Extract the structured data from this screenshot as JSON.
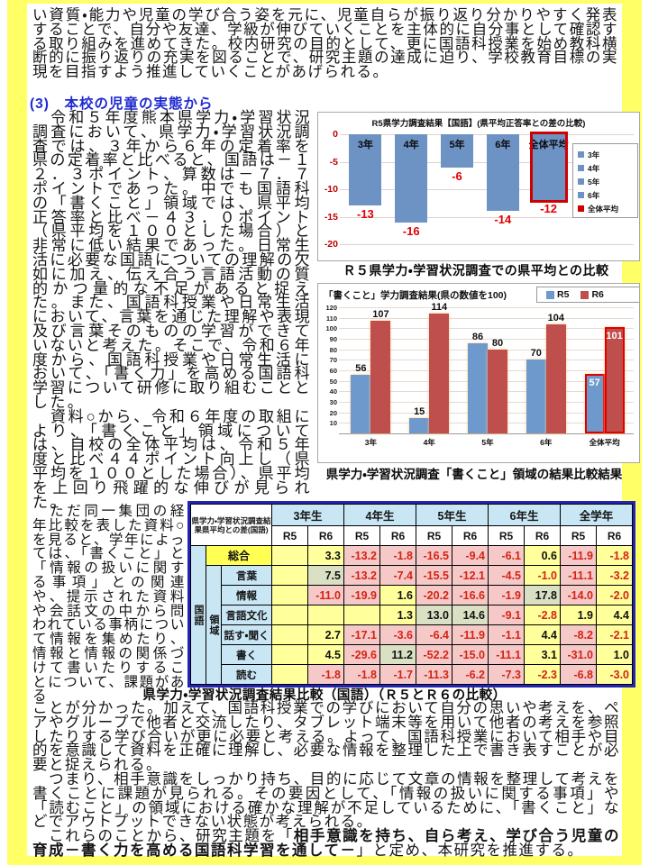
{
  "page": {
    "intro_paragraph": "い資質・能力や児童の学び合う姿を元に、児童自らが振り返り分かりやすく発表することで、自分や友達、学級が伸びていくことを主体的に自分事として確認する取り組みを進めてきた。校内研究の目的として、更に国語科授業を始め教科横断的に振り返りの充実を図ることで、研究主題の達成に迫り、学校教育目標の実現を目指すよう推進していくことがあげられる。",
    "section_heading": "(3)　本校の児童の実態から",
    "left_paragraph_1": "　令和５年度熊本県学力・学習状況調査において、県学力・学習状況調査では、３年から６年の定着率を県の定着率と比べると、国語は－１２．３ポイント、算数は－７．７ポイントであった。中でも国語科の「書くこと」領域では、県平均正答率と比べ－４３．０ポイント（県平均を１００とした場合）と非常に低い結果であった。日常生活に必要な国語についての理解の欠如に加え、伝え合う言語活動の質的かつ量的な不足があると捉えた。また、国語科授業や日常生活において、言葉を通じた理解や表現及び言葉そのものの学習ができていないと考えた。そこで、令和６年度から、国語科授業や日常生活において、「書く力」を高める国語科学習について研修に取り組むこととした。",
    "left_paragraph_2": "　資料○から、令和６年度の取組により、「書くこと」領域については、自校の全体平均は、令和５年度と比べ４４ポイント向上し（県平均を１００とした場合）、県平均を上回り飛躍的な伸びが見られた。",
    "narrow_paragraph": "　ただ同一集団の経年比較を表した資料○を見ると、学年によっては、「書くこと」と「情報の扱いに関する事項」との関連や、提示された資料や会話文の中から問われている事柄について情報を集めたり、情報と情報の関係づけて書いたりすることについて、課題がある",
    "bottom_paragraph_1": "ことが分かった。加えて、国語科授業での学びにおいて自分の思いや考えを、ペアやグループで他者と交流したり、タブレット端末等を用いて他者の考えを参照したりする学び合いが更に必要と考える。よって、国語科授業において相手や目的を意識して資料を正確に理解し、必要な情報を整理した上で書き表すことが必要と捉えられる。",
    "bottom_paragraph_2": "　つまり、相手意識をしっかり持ち、目的に応じて文章の情報を整理して考えを書くことに課題が見られる。その要因として、「情報の扱いに関する事項」や「読むこと」の領域における確かな理解が不足しているために、「書くこと」などでアウトプットできない状態が考えられる。",
    "bottom_paragraph_3_pre": "　これらのことから、研究主題を「",
    "research_theme": "相手意識を持ち、自ら考え、学び合う児童の育成－書く力を高める国語科学習を通して－",
    "bottom_paragraph_3_post": "」と定め、本研究を推進する。"
  },
  "captions": {
    "chart1": "Ｒ５県学力・学習状況調査での県平均との比較",
    "chart2": "県学力・学習状況調査「書くこと」領域の結果比較結果",
    "table": "県学力・学習状況調査結果比較（国語）（Ｒ５とＲ６の比較）"
  },
  "chart_data": [
    {
      "type": "bar",
      "title": "R5県学力調査結果【国語】(県平均正答率との差の比較)",
      "categories": [
        "3年",
        "4年",
        "5年",
        "6年",
        "全体平均"
      ],
      "values": [
        -13,
        -16,
        -6,
        -14,
        -12
      ],
      "ylim": [
        -20,
        0
      ],
      "yticks": [
        0,
        -5,
        -10,
        -15,
        -20
      ],
      "bar_color": "#6d92c4",
      "value_label_color": "#e00000",
      "highlight_last": true,
      "highlight_color": "#d00000",
      "legend": [
        {
          "label": "3年",
          "color": "#6d92c4"
        },
        {
          "label": "4年",
          "color": "#6d92c4"
        },
        {
          "label": "5年",
          "color": "#6d92c4"
        },
        {
          "label": "6年",
          "color": "#6d92c4"
        },
        {
          "label": "全体平均",
          "color": "#d00000"
        }
      ],
      "legend_position": "right"
    },
    {
      "type": "bar",
      "title": "「書くこと」学力調査結果(県の数値を100)",
      "categories": [
        "3年",
        "4年",
        "5年",
        "6年",
        "全体平均"
      ],
      "series": [
        {
          "name": "R5",
          "color": "#6d99cc",
          "values": [
            56,
            15,
            86,
            70,
            57
          ]
        },
        {
          "name": "R6",
          "color": "#bf4f4c",
          "values": [
            107,
            114,
            80,
            104,
            101
          ]
        }
      ],
      "ylim": [
        0,
        120
      ],
      "ytick_step": 10,
      "highlight_last_group": true,
      "highlight_color": "#e00000",
      "legend_position": "top-right"
    }
  ],
  "table": {
    "corner_label": "県学力・学習状況調査結果県平均との差(国語)",
    "group_headers": [
      "3年生",
      "4年生",
      "5年生",
      "6年生",
      "全学年"
    ],
    "sub_headers": [
      "R5",
      "R6"
    ],
    "axis_label": "国語",
    "area_label": "領域",
    "rows": [
      {
        "label": "総合",
        "sogo": true,
        "cells": [
          [
            "",
            "y"
          ],
          [
            "3.3",
            "y"
          ],
          [
            "-13.2",
            "p"
          ],
          [
            "-1.8",
            "p"
          ],
          [
            "-16.5",
            "p"
          ],
          [
            "-9.4",
            "p"
          ],
          [
            "-6.1",
            "p"
          ],
          [
            "0.6",
            "y"
          ],
          [
            "-11.9",
            "p"
          ],
          [
            "-1.8",
            "y"
          ]
        ]
      },
      {
        "label": "言葉",
        "cells": [
          [
            "",
            "y"
          ],
          [
            "7.5",
            "g"
          ],
          [
            "-13.2",
            "p"
          ],
          [
            "-7.4",
            "p"
          ],
          [
            "-15.5",
            "p"
          ],
          [
            "-12.1",
            "p"
          ],
          [
            "-4.5",
            "p"
          ],
          [
            "-1.0",
            "y"
          ],
          [
            "-11.1",
            "p"
          ],
          [
            "-3.2",
            "y"
          ]
        ]
      },
      {
        "label": "情報",
        "cells": [
          [
            "",
            "y"
          ],
          [
            "-11.0",
            "p"
          ],
          [
            "-19.9",
            "p"
          ],
          [
            "1.6",
            "y"
          ],
          [
            "-20.2",
            "p"
          ],
          [
            "-16.6",
            "p"
          ],
          [
            "-1.9",
            "p"
          ],
          [
            "17.8",
            "g"
          ],
          [
            "-14.0",
            "p"
          ],
          [
            "-2.0",
            "y"
          ]
        ]
      },
      {
        "label": "言語文化",
        "cells": [
          [
            "",
            "y"
          ],
          [
            "",
            "y"
          ],
          [
            "",
            "y"
          ],
          [
            "1.3",
            "y"
          ],
          [
            "13.0",
            "g"
          ],
          [
            "14.6",
            "g"
          ],
          [
            "-9.1",
            "p"
          ],
          [
            "-2.8",
            "y"
          ],
          [
            "1.9",
            "y"
          ],
          [
            "4.4",
            "y"
          ]
        ]
      },
      {
        "label": "話す・聞く",
        "cells": [
          [
            "",
            "y"
          ],
          [
            "2.7",
            "y"
          ],
          [
            "-17.1",
            "p"
          ],
          [
            "-3.6",
            "p"
          ],
          [
            "-6.4",
            "p"
          ],
          [
            "-11.9",
            "p"
          ],
          [
            "-1.1",
            "p"
          ],
          [
            "4.4",
            "y"
          ],
          [
            "-8.2",
            "p"
          ],
          [
            "-2.1",
            "y"
          ]
        ]
      },
      {
        "label": "書く",
        "thick": true,
        "cells": [
          [
            "",
            "y"
          ],
          [
            "4.5",
            "y"
          ],
          [
            "-29.6",
            "p"
          ],
          [
            "11.2",
            "g"
          ],
          [
            "-52.2",
            "p"
          ],
          [
            "-15.0",
            "p"
          ],
          [
            "-11.1",
            "p"
          ],
          [
            "3.1",
            "y"
          ],
          [
            "-31.0",
            "p"
          ],
          [
            "1.0",
            "y"
          ]
        ]
      },
      {
        "label": "読む",
        "cells": [
          [
            "",
            "y"
          ],
          [
            "-1.8",
            "p"
          ],
          [
            "-1.8",
            "p"
          ],
          [
            "-1.7",
            "p"
          ],
          [
            "-11.3",
            "p"
          ],
          [
            "-6.2",
            "p"
          ],
          [
            "-7.3",
            "p"
          ],
          [
            "-2.3",
            "y"
          ],
          [
            "-6.8",
            "p"
          ],
          [
            "-3.0",
            "y"
          ]
        ]
      }
    ]
  }
}
